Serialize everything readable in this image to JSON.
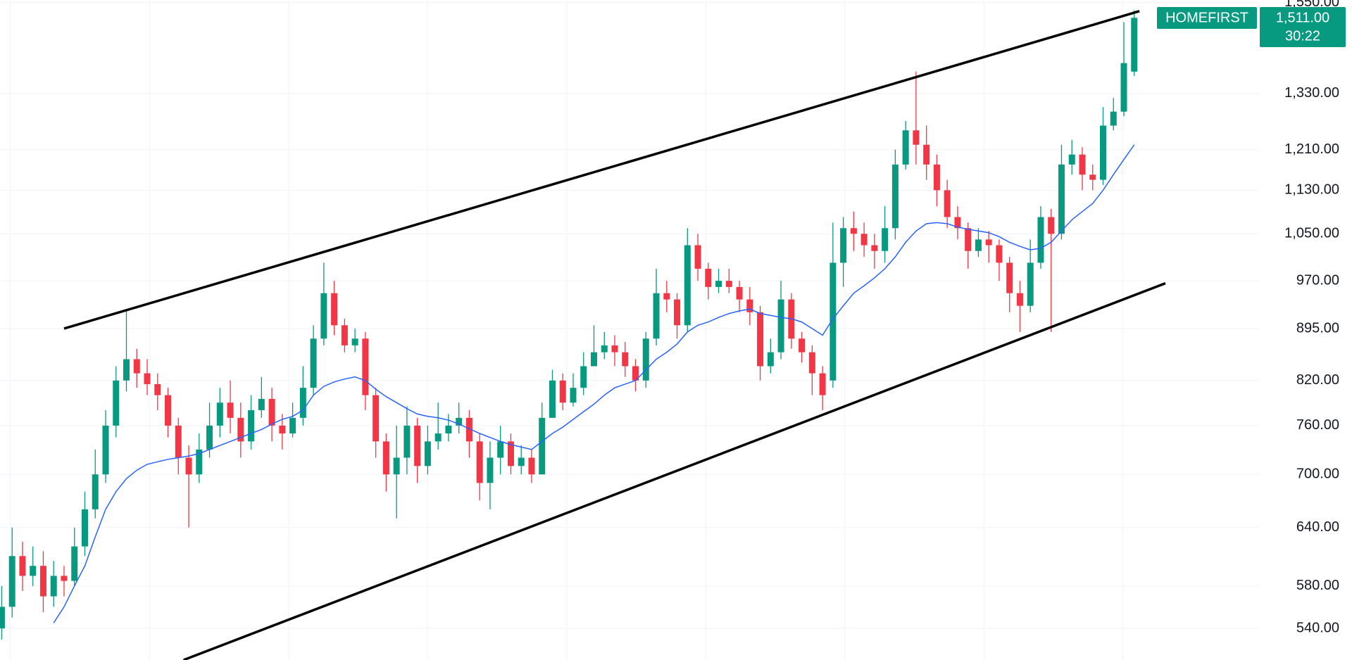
{
  "chart_data": {
    "type": "candlestick",
    "symbol": "HOMEFIRST",
    "last_price": {
      "value": 1511,
      "label": "1,511.00"
    },
    "countdown": "30:22",
    "log_scale": true,
    "grid": true,
    "up_color": "#089981",
    "down_color": "#f23645",
    "ylim": [
      512,
      1557
    ],
    "yticks": [
      {
        "value": 540,
        "label": "540.00"
      },
      {
        "value": 580,
        "label": "580.00"
      },
      {
        "value": 640,
        "label": "640.00"
      },
      {
        "value": 700,
        "label": "700.00"
      },
      {
        "value": 760,
        "label": "760.00"
      },
      {
        "value": 820,
        "label": "820.00"
      },
      {
        "value": 895,
        "label": "895.00"
      },
      {
        "value": 970,
        "label": "970.00"
      },
      {
        "value": 1050,
        "label": "1,050.00"
      },
      {
        "value": 1130,
        "label": "1,130.00"
      },
      {
        "value": 1210,
        "label": "1,210.00"
      },
      {
        "value": 1330,
        "label": "1,330.00"
      },
      {
        "value": 1550,
        "label": "1,550.00"
      }
    ],
    "open": [
      540,
      560,
      610,
      590,
      600,
      570,
      590,
      585,
      620,
      660,
      700,
      760,
      820,
      850,
      830,
      815,
      800,
      760,
      720,
      700,
      730,
      760,
      790,
      770,
      740,
      780,
      795,
      760,
      750,
      770,
      810,
      880,
      950,
      900,
      870,
      880,
      800,
      740,
      700,
      720,
      760,
      710,
      740,
      750,
      760,
      770,
      740,
      690,
      720,
      740,
      710,
      720,
      700,
      770,
      820,
      790,
      810,
      840,
      860,
      870,
      860,
      840,
      820,
      880,
      950,
      940,
      900,
      1030,
      990,
      960,
      970,
      960,
      940,
      920,
      840,
      860,
      940,
      880,
      860,
      830,
      820,
      1000,
      1060,
      1050,
      1030,
      1020,
      1060,
      1180,
      1250,
      1220,
      1180,
      1130,
      1080,
      1060,
      1020,
      1040,
      1030,
      1000,
      950,
      930,
      1000,
      1080,
      1050,
      1180,
      1200,
      1160,
      1150,
      1260,
      1290,
      1380
    ],
    "high": [
      580,
      640,
      625,
      620,
      615,
      605,
      600,
      640,
      680,
      730,
      780,
      840,
      925,
      865,
      850,
      830,
      810,
      770,
      735,
      750,
      790,
      810,
      820,
      790,
      800,
      825,
      810,
      775,
      790,
      840,
      900,
      1000,
      970,
      910,
      895,
      890,
      810,
      750,
      760,
      785,
      770,
      760,
      790,
      775,
      790,
      780,
      750,
      740,
      760,
      750,
      735,
      730,
      790,
      835,
      830,
      830,
      860,
      900,
      890,
      885,
      875,
      850,
      890,
      990,
      970,
      950,
      1060,
      1050,
      1000,
      990,
      990,
      970,
      960,
      930,
      880,
      970,
      950,
      890,
      870,
      840,
      1070,
      1080,
      1090,
      1070,
      1050,
      1100,
      1210,
      1270,
      1380,
      1260,
      1200,
      1150,
      1100,
      1070,
      1060,
      1055,
      1040,
      1010,
      970,
      1040,
      1100,
      1095,
      1220,
      1230,
      1215,
      1180,
      1300,
      1320,
      1500,
      1530
    ],
    "low": [
      530,
      550,
      575,
      580,
      555,
      560,
      570,
      580,
      610,
      650,
      690,
      745,
      805,
      810,
      800,
      780,
      745,
      700,
      640,
      690,
      720,
      745,
      750,
      720,
      730,
      770,
      740,
      730,
      745,
      760,
      800,
      870,
      885,
      860,
      860,
      780,
      720,
      680,
      650,
      700,
      690,
      700,
      730,
      740,
      750,
      720,
      670,
      660,
      700,
      700,
      700,
      690,
      700,
      770,
      780,
      785,
      800,
      840,
      850,
      840,
      825,
      805,
      810,
      870,
      920,
      880,
      890,
      970,
      940,
      950,
      950,
      920,
      900,
      820,
      830,
      850,
      865,
      845,
      800,
      780,
      810,
      960,
      1020,
      1010,
      990,
      1000,
      1040,
      1170,
      1180,
      1150,
      1100,
      1060,
      1040,
      990,
      1010,
      1000,
      970,
      920,
      890,
      920,
      990,
      890,
      1040,
      1160,
      1130,
      1130,
      1140,
      1250,
      1280,
      1370
    ],
    "close": [
      560,
      610,
      590,
      600,
      570,
      590,
      585,
      620,
      660,
      700,
      760,
      820,
      850,
      830,
      815,
      800,
      760,
      720,
      700,
      730,
      760,
      790,
      770,
      740,
      780,
      795,
      760,
      750,
      770,
      810,
      880,
      950,
      900,
      870,
      880,
      800,
      740,
      700,
      720,
      760,
      710,
      740,
      750,
      760,
      770,
      740,
      690,
      720,
      740,
      710,
      720,
      700,
      770,
      820,
      790,
      810,
      840,
      860,
      870,
      860,
      840,
      820,
      880,
      950,
      940,
      900,
      1030,
      990,
      960,
      970,
      960,
      940,
      920,
      840,
      860,
      940,
      880,
      860,
      830,
      800,
      1000,
      1060,
      1050,
      1030,
      1020,
      1060,
      1180,
      1250,
      1220,
      1180,
      1130,
      1080,
      1060,
      1020,
      1040,
      1030,
      1000,
      950,
      930,
      1000,
      1080,
      1050,
      1180,
      1200,
      1160,
      1150,
      1260,
      1290,
      1400,
      1511
    ],
    "moving_average": {
      "color": "#2962ff",
      "values": [
        null,
        null,
        null,
        null,
        null,
        545,
        560,
        580,
        600,
        630,
        660,
        680,
        695,
        705,
        712,
        715,
        718,
        720,
        722,
        725,
        730,
        735,
        740,
        745,
        750,
        755,
        762,
        768,
        772,
        780,
        800,
        812,
        818,
        822,
        825,
        820,
        808,
        798,
        790,
        782,
        775,
        772,
        770,
        767,
        762,
        756,
        750,
        745,
        740,
        736,
        733,
        730,
        740,
        750,
        758,
        768,
        778,
        788,
        800,
        810,
        815,
        820,
        835,
        850,
        860,
        872,
        890,
        900,
        905,
        912,
        918,
        922,
        925,
        918,
        915,
        912,
        910,
        905,
        895,
        885,
        910,
        930,
        950,
        962,
        975,
        990,
        1010,
        1035,
        1055,
        1068,
        1070,
        1068,
        1062,
        1058,
        1055,
        1052,
        1045,
        1035,
        1028,
        1022,
        1025,
        1035,
        1055,
        1075,
        1090,
        1105,
        1130,
        1160,
        1190,
        1220
      ]
    },
    "trendlines": [
      {
        "color": "#000000",
        "x": [
          6,
          109.5
        ],
        "y": [
          895,
          1528
        ]
      },
      {
        "color": "#000000",
        "x": [
          17.5,
          112
        ],
        "y": [
          512,
          966
        ]
      }
    ]
  }
}
